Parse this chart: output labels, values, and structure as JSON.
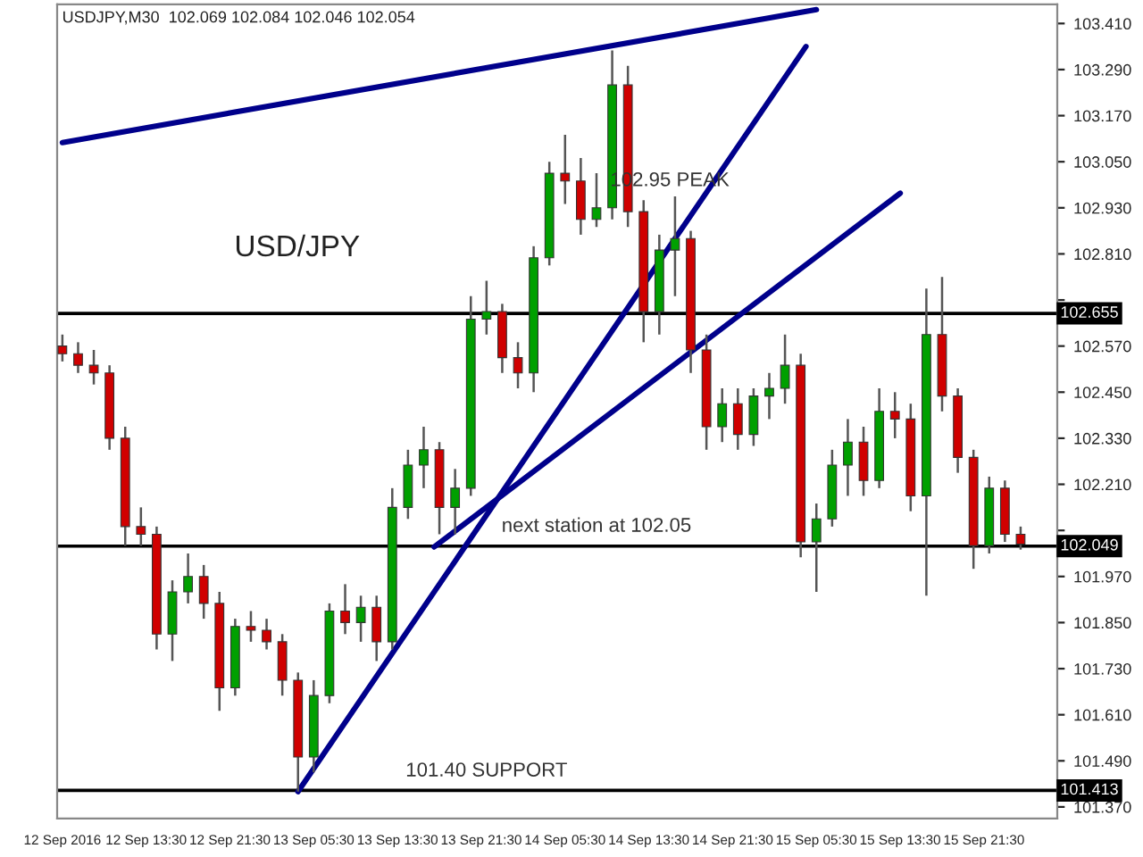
{
  "chart_data": {
    "type": "candlestick",
    "title": "USDJPY,M30  102.069 102.084 102.046 102.054",
    "annotations": [
      "USD/JPY",
      {
        "text": "102.95 PEAK",
        "x": "2016-09-14T15:30",
        "y": 102.95
      },
      {
        "text": "next station at 102.05",
        "x": "2016-09-14T08:30",
        "y": 102.05
      },
      {
        "text": "101.40 SUPPORT",
        "x": "2016-09-13T22:00",
        "y": 101.413
      }
    ],
    "series": [
      {
        "x": [
          "2016-09-12T05:30",
          "2016-09-12T07:00",
          "2016-09-12T08:30",
          "2016-09-12T10:00",
          "2016-09-12T11:30",
          "2016-09-12T13:00",
          "2016-09-12T14:30",
          "2016-09-12T16:00",
          "2016-09-12T17:30",
          "2016-09-12T19:00",
          "2016-09-12T20:30",
          "2016-09-12T22:00",
          "2016-09-12T23:30",
          "2016-09-13T01:00",
          "2016-09-13T02:30",
          "2016-09-13T04:00",
          "2016-09-13T05:30",
          "2016-09-13T07:00",
          "2016-09-13T08:30",
          "2016-09-13T10:00",
          "2016-09-13T11:30",
          "2016-09-13T13:00",
          "2016-09-13T14:30",
          "2016-09-13T16:00",
          "2016-09-13T17:30",
          "2016-09-13T19:00",
          "2016-09-13T20:30",
          "2016-09-13T22:00",
          "2016-09-13T23:30",
          "2016-09-14T01:00",
          "2016-09-14T02:30",
          "2016-09-14T04:00",
          "2016-09-14T05:30",
          "2016-09-14T07:00",
          "2016-09-14T08:30",
          "2016-09-14T10:00",
          "2016-09-14T11:30",
          "2016-09-14T13:00",
          "2016-09-14T14:30",
          "2016-09-14T16:00",
          "2016-09-14T17:30",
          "2016-09-14T19:00",
          "2016-09-14T20:30",
          "2016-09-14T22:00",
          "2016-09-14T23:30",
          "2016-09-15T01:00",
          "2016-09-15T02:30",
          "2016-09-15T04:00",
          "2016-09-15T05:30",
          "2016-09-15T07:00",
          "2016-09-15T08:30",
          "2016-09-15T10:00",
          "2016-09-15T11:30",
          "2016-09-15T13:00",
          "2016-09-15T14:30",
          "2016-09-15T16:00",
          "2016-09-15T17:30",
          "2016-09-15T19:00",
          "2016-09-15T20:30",
          "2016-09-15T22:00",
          "2016-09-15T23:30",
          "2016-09-16T01:00"
        ],
        "ohlc": [
          [
            102.57,
            102.6,
            102.53,
            102.55
          ],
          [
            102.55,
            102.58,
            102.5,
            102.52
          ],
          [
            102.52,
            102.56,
            102.47,
            102.5
          ],
          [
            102.5,
            102.52,
            102.3,
            102.33
          ],
          [
            102.33,
            102.36,
            102.05,
            102.1
          ],
          [
            102.1,
            102.15,
            102.05,
            102.08
          ],
          [
            102.08,
            102.1,
            101.78,
            101.82
          ],
          [
            101.82,
            101.96,
            101.75,
            101.93
          ],
          [
            101.93,
            102.03,
            101.9,
            101.97
          ],
          [
            101.97,
            102.0,
            101.86,
            101.9
          ],
          [
            101.9,
            101.93,
            101.62,
            101.68
          ],
          [
            101.68,
            101.86,
            101.66,
            101.84
          ],
          [
            101.84,
            101.88,
            101.8,
            101.83
          ],
          [
            101.83,
            101.86,
            101.78,
            101.8
          ],
          [
            101.8,
            101.82,
            101.66,
            101.7
          ],
          [
            101.7,
            101.72,
            101.41,
            101.5
          ],
          [
            101.5,
            101.7,
            101.46,
            101.66
          ],
          [
            101.66,
            101.9,
            101.64,
            101.88
          ],
          [
            101.88,
            101.95,
            101.82,
            101.85
          ],
          [
            101.85,
            101.92,
            101.8,
            101.89
          ],
          [
            101.89,
            101.92,
            101.75,
            101.8
          ],
          [
            101.8,
            102.2,
            101.78,
            102.15
          ],
          [
            102.15,
            102.3,
            102.12,
            102.26
          ],
          [
            102.26,
            102.36,
            102.2,
            102.3
          ],
          [
            102.3,
            102.32,
            102.08,
            102.15
          ],
          [
            102.15,
            102.25,
            102.08,
            102.2
          ],
          [
            102.2,
            102.7,
            102.18,
            102.64
          ],
          [
            102.64,
            102.74,
            102.6,
            102.66
          ],
          [
            102.66,
            102.68,
            102.5,
            102.54
          ],
          [
            102.54,
            102.58,
            102.46,
            102.5
          ],
          [
            102.5,
            102.83,
            102.45,
            102.8
          ],
          [
            102.8,
            103.05,
            102.78,
            103.02
          ],
          [
            103.02,
            103.12,
            102.94,
            103.0
          ],
          [
            103.0,
            103.06,
            102.86,
            102.9
          ],
          [
            102.9,
            103.02,
            102.88,
            102.93
          ],
          [
            102.93,
            103.34,
            102.9,
            103.25
          ],
          [
            103.25,
            103.3,
            102.88,
            102.92
          ],
          [
            102.92,
            102.95,
            102.58,
            102.66
          ],
          [
            102.66,
            102.86,
            102.6,
            102.82
          ],
          [
            102.82,
            102.96,
            102.7,
            102.85
          ],
          [
            102.85,
            102.87,
            102.5,
            102.56
          ],
          [
            102.56,
            102.6,
            102.3,
            102.36
          ],
          [
            102.36,
            102.46,
            102.32,
            102.42
          ],
          [
            102.42,
            102.46,
            102.3,
            102.34
          ],
          [
            102.34,
            102.46,
            102.31,
            102.44
          ],
          [
            102.44,
            102.5,
            102.38,
            102.46
          ],
          [
            102.46,
            102.6,
            102.42,
            102.52
          ],
          [
            102.52,
            102.55,
            102.02,
            102.06
          ],
          [
            102.06,
            102.16,
            101.93,
            102.12
          ],
          [
            102.12,
            102.3,
            102.1,
            102.26
          ],
          [
            102.26,
            102.38,
            102.18,
            102.32
          ],
          [
            102.32,
            102.36,
            102.18,
            102.22
          ],
          [
            102.22,
            102.46,
            102.2,
            102.4
          ],
          [
            102.4,
            102.45,
            102.33,
            102.38
          ],
          [
            102.38,
            102.42,
            102.14,
            102.18
          ],
          [
            102.18,
            102.72,
            101.92,
            102.6
          ],
          [
            102.6,
            102.75,
            102.4,
            102.44
          ],
          [
            102.44,
            102.46,
            102.24,
            102.28
          ],
          [
            102.28,
            102.3,
            101.99,
            102.05
          ],
          [
            102.05,
            102.23,
            102.03,
            102.2
          ],
          [
            102.2,
            102.22,
            102.06,
            102.08
          ],
          [
            102.08,
            102.1,
            102.04,
            102.054
          ]
        ],
        "colors": [
          "#d00000",
          "#d00000",
          "#d00000",
          "#d00000",
          "#d00000",
          "#d00000",
          "#d00000",
          "#00a000",
          "#00a000",
          "#d00000",
          "#d00000",
          "#00a000",
          "#d00000",
          "#d00000",
          "#d00000",
          "#d00000",
          "#00a000",
          "#00a000",
          "#d00000",
          "#00a000",
          "#d00000",
          "#00a000",
          "#00a000",
          "#00a000",
          "#d00000",
          "#00a000",
          "#00a000",
          "#00a000",
          "#d00000",
          "#d00000",
          "#00a000",
          "#00a000",
          "#d00000",
          "#d00000",
          "#00a000",
          "#00a000",
          "#d00000",
          "#d00000",
          "#00a000",
          "#00a000",
          "#d00000",
          "#d00000",
          "#00a000",
          "#d00000",
          "#00a000",
          "#00a000",
          "#00a000",
          "#d00000",
          "#00a000",
          "#00a000",
          "#00a000",
          "#d00000",
          "#00a000",
          "#d00000",
          "#d00000",
          "#00a000",
          "#d00000",
          "#d00000",
          "#d00000",
          "#00a000",
          "#d00000",
          "#d00000"
        ]
      },
      {
        "type": "line",
        "color": "#00008b",
        "x": [
          "2016-09-12T05:30",
          "2016-09-15T05:30"
        ],
        "values": [
          103.1,
          103.446
        ]
      },
      {
        "type": "line",
        "color": "#00008b",
        "x": [
          "2016-09-13T04:00",
          "2016-09-15T04:30"
        ],
        "values": [
          101.41,
          103.35
        ]
      },
      {
        "type": "line",
        "color": "#00008b",
        "x": [
          "2016-09-13T17:00",
          "2016-09-15T13:30"
        ],
        "values": [
          102.047,
          102.968
        ]
      }
    ],
    "ref_lines": [
      {
        "axis": "y",
        "value": 102.655,
        "label": "102.655",
        "color": "#000000"
      },
      {
        "axis": "y",
        "value": 102.049,
        "label": "102.049",
        "color": "#000000"
      },
      {
        "axis": "y",
        "value": 101.413,
        "label": "101.413",
        "color": "#000000"
      }
    ],
    "xlim": [
      "2016-09-12T05:00",
      "2016-09-16T04:30"
    ],
    "xticks": [
      {
        "value": "2016-09-12T05:30",
        "label": "12 Sep 2016"
      },
      {
        "value": "2016-09-12T13:30",
        "label": "12 Sep 13:30"
      },
      {
        "value": "2016-09-12T21:30",
        "label": "12 Sep 21:30"
      },
      {
        "value": "2016-09-13T05:30",
        "label": "13 Sep 05:30"
      },
      {
        "value": "2016-09-13T13:30",
        "label": "13 Sep 13:30"
      },
      {
        "value": "2016-09-13T21:30",
        "label": "13 Sep 21:30"
      },
      {
        "value": "2016-09-14T05:30",
        "label": "14 Sep 05:30"
      },
      {
        "value": "2016-09-14T13:30",
        "label": "14 Sep 13:30"
      },
      {
        "value": "2016-09-14T21:30",
        "label": "14 Sep 21:30"
      },
      {
        "value": "2016-09-15T05:30",
        "label": "15 Sep 05:30"
      },
      {
        "value": "2016-09-15T13:30",
        "label": "15 Sep 13:30"
      },
      {
        "value": "2016-09-15T21:30",
        "label": "15 Sep 21:30"
      }
    ],
    "ylim": [
      101.34,
      103.46
    ],
    "yticks": [
      {
        "value": 103.41,
        "label": "103.410"
      },
      {
        "value": 103.29,
        "label": "103.290"
      },
      {
        "value": 103.17,
        "label": "103.170"
      },
      {
        "value": 103.05,
        "label": "103.050"
      },
      {
        "value": 102.93,
        "label": "102.930"
      },
      {
        "value": 102.81,
        "label": "102.810"
      },
      {
        "value": 102.69,
        "label": null
      },
      {
        "value": 102.57,
        "label": "102.570"
      },
      {
        "value": 102.45,
        "label": "102.450"
      },
      {
        "value": 102.33,
        "label": "102.330"
      },
      {
        "value": 102.21,
        "label": "102.210"
      },
      {
        "value": 102.09,
        "label": null
      },
      {
        "value": 101.97,
        "label": "101.970"
      },
      {
        "value": 101.85,
        "label": "101.850"
      },
      {
        "value": 101.73,
        "label": "101.730"
      },
      {
        "value": 101.61,
        "label": "101.610"
      },
      {
        "value": 101.49,
        "label": "101.490"
      },
      {
        "value": 101.37,
        "label": "101.370"
      }
    ],
    "tick_labels": "xy2",
    "grid": false,
    "legend": false
  }
}
